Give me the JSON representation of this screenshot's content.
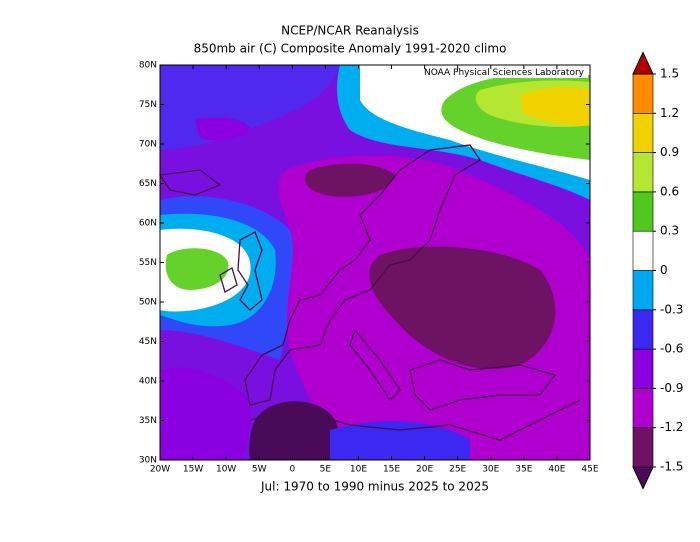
{
  "chart_data": {
    "type": "map",
    "title": "NCEP/NCAR Reanalysis",
    "subtitle": "850mb air (C) Composite Anomaly 1991-2020 climo",
    "xlabel": "Jul: 1970 to 1990 minus 2025 to 2025",
    "annotation": "NOAA Physical Sciences Laboratory",
    "xlim": [
      -20,
      45
    ],
    "ylim": [
      30,
      80
    ],
    "xticks": [
      {
        "value": -20,
        "label": "20W"
      },
      {
        "value": -15,
        "label": "15W"
      },
      {
        "value": -10,
        "label": "10W"
      },
      {
        "value": -5,
        "label": "5W"
      },
      0,
      {
        "value": 5,
        "label": "5E"
      },
      {
        "value": 10,
        "label": "10E"
      },
      {
        "value": 15,
        "label": "15E"
      },
      {
        "value": 20,
        "label": "20E"
      },
      {
        "value": 25,
        "label": "25E"
      },
      {
        "value": 30,
        "label": "30E"
      },
      {
        "value": 35,
        "label": "35E"
      },
      {
        "value": 40,
        "label": "40E"
      },
      {
        "value": 45,
        "label": "45E"
      }
    ],
    "yticks": [
      {
        "value": 30,
        "label": "30N"
      },
      {
        "value": 35,
        "label": "35N"
      },
      {
        "value": 40,
        "label": "40N"
      },
      {
        "value": 45,
        "label": "45N"
      },
      {
        "value": 50,
        "label": "50N"
      },
      {
        "value": 55,
        "label": "55N"
      },
      {
        "value": 60,
        "label": "60N"
      },
      {
        "value": 65,
        "label": "65N"
      },
      {
        "value": 70,
        "label": "70N"
      },
      {
        "value": 75,
        "label": "75N"
      },
      {
        "value": 80,
        "label": "80N"
      }
    ],
    "colorbar": {
      "levels": [
        -1.5,
        -1.2,
        -0.9,
        -0.6,
        -0.3,
        0,
        0.3,
        0.6,
        0.9,
        1.2,
        1.5
      ],
      "colors": [
        "#4a0a5a",
        "#6e1264",
        "#b000d0",
        "#8a00e0",
        "#3c28f0",
        "#00a8f0",
        "#ffffff",
        "#50c81e",
        "#b4e632",
        "#f0d200",
        "#ff8c00",
        "#b40000"
      ]
    }
  }
}
